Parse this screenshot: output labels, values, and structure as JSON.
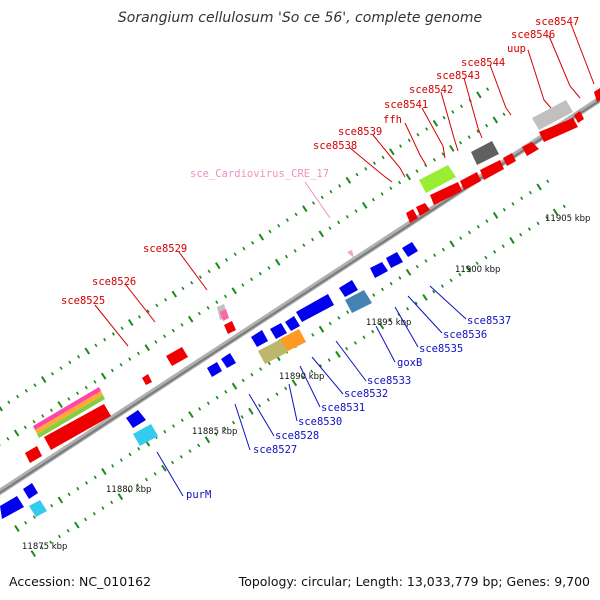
{
  "title": "Sorangium cellulosum 'So ce 56', complete genome",
  "footer": {
    "accession": "Accession: NC_010162",
    "info": "Topology: circular; Length: 13,033,779 bp; Genes: 9,700"
  },
  "kbp_ticks": [
    "11875 kbp",
    "11880 kbp",
    "11885 kbp",
    "11890 kbp",
    "11895 kbp",
    "11900 kbp",
    "11905 kbp"
  ],
  "gene_labels": [
    {
      "key": "sce8547",
      "text": "sce8547",
      "color": "#d40000"
    },
    {
      "key": "sce8546",
      "text": "sce8546",
      "color": "#d40000"
    },
    {
      "key": "uup",
      "text": "uup",
      "color": "#d40000"
    },
    {
      "key": "sce8544",
      "text": "sce8544",
      "color": "#d40000"
    },
    {
      "key": "sce8543",
      "text": "sce8543",
      "color": "#d40000"
    },
    {
      "key": "sce8542",
      "text": "sce8542",
      "color": "#d40000"
    },
    {
      "key": "sce8541",
      "text": "sce8541",
      "color": "#d40000"
    },
    {
      "key": "ffh",
      "text": "ffh",
      "color": "#d40000"
    },
    {
      "key": "sce8539",
      "text": "sce8539",
      "color": "#d40000"
    },
    {
      "key": "sce8538",
      "text": "sce8538",
      "color": "#d40000"
    },
    {
      "key": "cre",
      "text": "sce_Cardiovirus_CRE_17",
      "color": "#f090c0"
    },
    {
      "key": "sce8529",
      "text": "sce8529",
      "color": "#d40000"
    },
    {
      "key": "sce8526",
      "text": "sce8526",
      "color": "#d40000"
    },
    {
      "key": "sce8525",
      "text": "sce8525",
      "color": "#d40000"
    },
    {
      "key": "sce8537",
      "text": "sce8537",
      "color": "#1010c0"
    },
    {
      "key": "sce8536",
      "text": "sce8536",
      "color": "#1010c0"
    },
    {
      "key": "sce8535",
      "text": "sce8535",
      "color": "#1010c0"
    },
    {
      "key": "goxB",
      "text": "goxB",
      "color": "#1010c0"
    },
    {
      "key": "sce8533",
      "text": "sce8533",
      "color": "#1010c0"
    },
    {
      "key": "sce8532",
      "text": "sce8532",
      "color": "#1010c0"
    },
    {
      "key": "sce8531",
      "text": "sce8531",
      "color": "#1010c0"
    },
    {
      "key": "sce8530",
      "text": "sce8530",
      "color": "#1010c0"
    },
    {
      "key": "sce8528",
      "text": "sce8528",
      "color": "#1010c0"
    },
    {
      "key": "sce8527",
      "text": "sce8527",
      "color": "#1010c0"
    },
    {
      "key": "purM",
      "text": "purM",
      "color": "#1010c0"
    }
  ],
  "colors": {
    "backbone": "#909090",
    "forward_gene": "#ee0000",
    "reverse_gene": "#0000ee",
    "tick": "#1a8a1a",
    "rrna_grey": "#c0c0c0",
    "dark_grey": "#606060",
    "lime": "#99ee33",
    "cyan": "#33ccee",
    "steel_blue": "#4682b4",
    "orange": "#ff9922",
    "khaki": "#bdb76b",
    "pink": "#ff66aa"
  }
}
